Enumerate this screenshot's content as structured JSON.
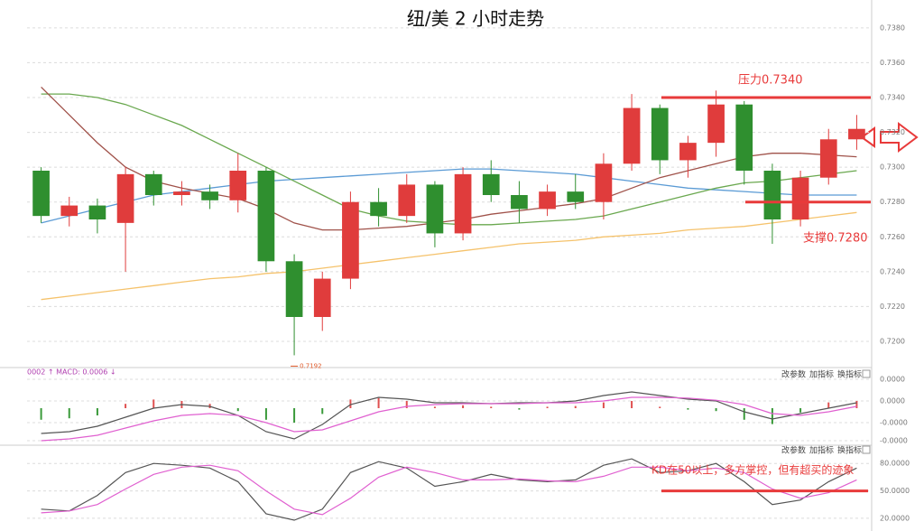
{
  "chart_data": [
    {
      "type": "candlestick",
      "title": "纽/美 2 小时走势",
      "categories": [
        null,
        null,
        null,
        null,
        null,
        null,
        null,
        null,
        null,
        null,
        null,
        null,
        null,
        null,
        null,
        null,
        null,
        null,
        null,
        null,
        null,
        null,
        null,
        null,
        null,
        null,
        null,
        null,
        null,
        null
      ],
      "open": [
        0.7298,
        0.7272,
        0.7278,
        0.7268,
        0.7296,
        0.7284,
        0.7286,
        0.7281,
        0.7298,
        0.7246,
        0.7214,
        0.7236,
        0.728,
        0.7272,
        0.729,
        0.7262,
        0.7296,
        0.7284,
        0.7276,
        0.7286,
        0.728,
        0.7302,
        0.7334,
        0.7304,
        0.7314,
        0.7336,
        0.7298,
        0.727,
        0.7294,
        0.7316
      ],
      "high": [
        0.73,
        0.7283,
        0.7282,
        0.73,
        0.7298,
        0.7292,
        0.729,
        0.7308,
        0.73,
        0.725,
        0.724,
        0.7286,
        0.7288,
        0.7296,
        0.7292,
        0.73,
        0.7304,
        0.7292,
        0.729,
        0.7296,
        0.7308,
        0.7342,
        0.7336,
        0.7318,
        0.7344,
        0.7338,
        0.7302,
        0.7298,
        0.7322,
        0.733
      ],
      "low": [
        0.7268,
        0.7266,
        0.7262,
        0.724,
        0.7278,
        0.7278,
        0.7276,
        0.7274,
        0.724,
        0.7192,
        0.7206,
        0.723,
        0.7266,
        0.7268,
        0.7254,
        0.7258,
        0.728,
        0.7268,
        0.7272,
        0.7276,
        0.727,
        0.7298,
        0.7296,
        0.7294,
        0.7306,
        0.729,
        0.7256,
        0.7266,
        0.729,
        0.731
      ],
      "close": [
        0.7272,
        0.7278,
        0.727,
        0.7296,
        0.7284,
        0.7286,
        0.7281,
        0.7298,
        0.7246,
        0.7214,
        0.7236,
        0.728,
        0.7272,
        0.729,
        0.7262,
        0.7296,
        0.7284,
        0.7276,
        0.7286,
        0.728,
        0.7302,
        0.7334,
        0.7304,
        0.7314,
        0.7336,
        0.7298,
        0.727,
        0.7294,
        0.7316,
        0.7322
      ],
      "up_color": "#e03c3c",
      "down_color": "#2f8f2f",
      "lines": [
        {
          "color": "#f5c26b",
          "values": [
            0.7224,
            0.7226,
            0.7228,
            0.723,
            0.7232,
            0.7234,
            0.7236,
            0.7237,
            0.7239,
            0.724,
            0.7242,
            0.7244,
            0.7246,
            0.7248,
            0.725,
            0.7252,
            0.7254,
            0.7256,
            0.7257,
            0.7258,
            0.726,
            0.7261,
            0.7262,
            0.7264,
            0.7265,
            0.7266,
            0.7268,
            0.727,
            0.7272,
            0.7274
          ]
        },
        {
          "color": "#5b9bd5",
          "values": [
            0.7268,
            0.7272,
            0.7276,
            0.728,
            0.7284,
            0.7286,
            0.7288,
            0.729,
            0.7292,
            0.7293,
            0.7294,
            0.7295,
            0.7296,
            0.7297,
            0.7298,
            0.7299,
            0.7299,
            0.7298,
            0.7297,
            0.7296,
            0.7294,
            0.7292,
            0.729,
            0.7288,
            0.7287,
            0.7286,
            0.7285,
            0.7284,
            0.7284,
            0.7284
          ]
        },
        {
          "color": "#6aa84f",
          "values": [
            0.7342,
            0.7342,
            0.734,
            0.7336,
            0.733,
            0.7324,
            0.7316,
            0.7308,
            0.73,
            0.7292,
            0.7284,
            0.7276,
            0.7272,
            0.7269,
            0.7268,
            0.7267,
            0.7267,
            0.7268,
            0.7269,
            0.727,
            0.7272,
            0.7276,
            0.728,
            0.7284,
            0.7288,
            0.7291,
            0.7292,
            0.7294,
            0.7296,
            0.7298
          ]
        },
        {
          "color": "#a0524a",
          "values": [
            0.7346,
            0.733,
            0.7314,
            0.73,
            0.7292,
            0.7288,
            0.7285,
            0.7282,
            0.7276,
            0.7268,
            0.7264,
            0.7264,
            0.7265,
            0.7266,
            0.7268,
            0.727,
            0.7273,
            0.7275,
            0.7277,
            0.7279,
            0.7282,
            0.7288,
            0.7294,
            0.7298,
            0.7302,
            0.7306,
            0.7308,
            0.7308,
            0.7307,
            0.7306
          ]
        }
      ],
      "annotations": [
        {
          "label": "压力0.7340",
          "value": 0.734,
          "color": "#e83a3a"
        },
        {
          "label": "支撑0.7280",
          "value": 0.728,
          "color": "#e83a3a"
        }
      ],
      "low_label": 0.7192,
      "ylim": [
        0.7186,
        0.7396
      ],
      "yticks": [
        {
          "value": 0.72,
          "label": "0.7200"
        },
        {
          "value": 0.722,
          "label": "0.7220"
        },
        {
          "value": 0.724,
          "label": "0.7240"
        },
        {
          "value": 0.726,
          "label": "0.7260"
        },
        {
          "value": 0.728,
          "label": "0.7280"
        },
        {
          "value": 0.73,
          "label": "0.7300"
        },
        {
          "value": 0.732,
          "label": "0.7320"
        },
        {
          "value": 0.734,
          "label": "0.7340"
        },
        {
          "value": 0.736,
          "label": "0.7360"
        },
        {
          "value": 0.738,
          "label": "0.7380"
        }
      ],
      "grid": true
    },
    {
      "type": "macd",
      "header": "0002 ↑ MACD: 0.0006 ↓",
      "buttons": [
        "改参数",
        "加指标",
        "换指标"
      ],
      "bars": [
        -1.6e-05,
        -1.4e-05,
        -1e-05,
        6e-06,
        1.2e-05,
        1e-05,
        6e-06,
        -4e-06,
        -1.6e-05,
        -2e-05,
        -8e-06,
        1.2e-05,
        1.4e-05,
        1e-05,
        2e-06,
        4e-06,
        2e-06,
        -2e-06,
        2e-06,
        3e-06,
        8e-06,
        1e-05,
        2e-06,
        -2e-06,
        -4e-06,
        -1.6e-05,
        -2.2e-05,
        -6e-06,
        8e-06,
        1e-05
      ],
      "up_color": "#e05050",
      "down_color": "#3a9a3a",
      "series": [
        {
          "color": "#555555",
          "values": [
            -3.5e-05,
            -3.25e-05,
            -2.5e-05,
            -1.25e-05,
            0,
            5e-06,
            2.5e-06,
            -1e-05,
            -3.25e-05,
            -4.25e-05,
            -2.25e-05,
            5e-06,
            1.5e-05,
            1.25e-05,
            7.5e-06,
            7.5e-06,
            6.25e-06,
            7.5e-06,
            7.5e-06,
            1e-05,
            1.75e-05,
            2.25e-05,
            1.75e-05,
            1.25e-05,
            1e-05,
            -5e-06,
            -1.5e-05,
            -7.5e-06,
            0,
            7.5e-06
          ]
        },
        {
          "color": "#e060d0",
          "values": [
            -4.5e-05,
            -4.25e-05,
            -3.75e-05,
            -2.75e-05,
            -1.75e-05,
            -1e-05,
            -7.5e-06,
            -1e-05,
            -2e-05,
            -3.25e-05,
            -3e-05,
            -1.75e-05,
            -5e-06,
            2.5e-06,
            5e-06,
            6.25e-06,
            6.25e-06,
            6.25e-06,
            7.5e-06,
            7.5e-06,
            1e-05,
            1.5e-05,
            1.5e-05,
            1.4e-05,
            1.1e-05,
            5e-06,
            -7.5e-06,
            -1e-05,
            -5e-06,
            2.5e-06
          ]
        }
      ],
      "ylim": [
        -5e-05,
        5e-05
      ],
      "yticks": [
        {
          "value": 4e-05,
          "label": "0.0000"
        },
        {
          "value": 1e-05,
          "label": "0.0000"
        },
        {
          "value": -2e-05,
          "label": "-0.0000"
        },
        {
          "value": -4.5e-05,
          "label": "-0.0000"
        }
      ],
      "grid": true
    },
    {
      "type": "kd",
      "buttons": [
        "改参数",
        "加指标",
        "换指标"
      ],
      "series": [
        {
          "color": "#555555",
          "values": [
            30,
            28,
            45,
            70,
            80,
            78,
            75,
            60,
            25,
            18,
            30,
            70,
            82,
            75,
            55,
            60,
            68,
            62,
            60,
            62,
            78,
            85,
            70,
            72,
            80,
            60,
            35,
            40,
            60,
            75
          ]
        },
        {
          "color": "#e060d0",
          "values": [
            26,
            28,
            35,
            52,
            68,
            76,
            78,
            72,
            50,
            30,
            24,
            42,
            65,
            76,
            70,
            62,
            62,
            63,
            61,
            60,
            66,
            76,
            76,
            72,
            75,
            70,
            52,
            42,
            48,
            62
          ]
        }
      ],
      "annotation": {
        "label": "KD在50以上，多方掌控，但有超买的迹象",
        "value": 50,
        "color": "#e83a3a"
      },
      "ylim": [
        14,
        97
      ],
      "yticks": [
        {
          "value": 80,
          "label": "80.0000"
        },
        {
          "value": 50,
          "label": "50.0000"
        },
        {
          "value": 20,
          "label": "20.0000"
        }
      ],
      "grid": true
    }
  ]
}
